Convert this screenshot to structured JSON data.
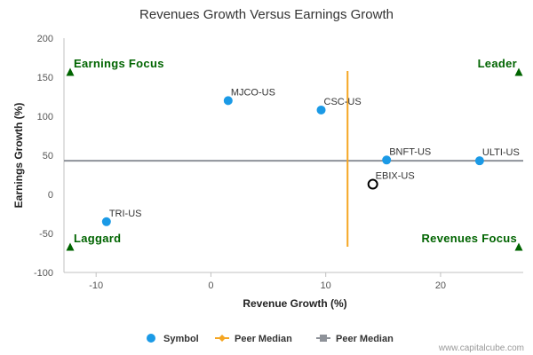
{
  "chart_data": {
    "type": "scatter",
    "title": "Revenues Growth Versus Earnings Growth",
    "xlabel": "Revenue Growth (%)",
    "ylabel": "Earnings Growth (%)",
    "xlim": [
      -12.8,
      27.2
    ],
    "ylim": [
      -100,
      200
    ],
    "x_ticks": [
      -10,
      0,
      10,
      20
    ],
    "y_ticks": [
      200,
      150,
      100,
      50,
      0,
      -50,
      -100
    ],
    "grid": false,
    "points": [
      {
        "label": "MJCO-US",
        "x": 1.5,
        "y": 120,
        "style": "filled",
        "color": "#1b9ae6"
      },
      {
        "label": "CSC-US",
        "x": 9.6,
        "y": 108,
        "style": "filled",
        "color": "#1b9ae6"
      },
      {
        "label": "BNFT-US",
        "x": 15.3,
        "y": 44,
        "style": "filled",
        "color": "#1b9ae6"
      },
      {
        "label": "ULTI-US",
        "x": 23.4,
        "y": 43,
        "style": "filled",
        "color": "#1b9ae6"
      },
      {
        "label": "EBIX-US",
        "x": 14.1,
        "y": 13,
        "style": "hollow",
        "color": "#000000"
      },
      {
        "label": "TRI-US",
        "x": -9.1,
        "y": -35,
        "style": "filled",
        "color": "#1b9ae6"
      }
    ],
    "peer_median_x": 11.9,
    "peer_median_x_range": [
      -67,
      158
    ],
    "peer_median_y": 43,
    "quadrants": {
      "top_left": "Earnings Focus",
      "top_right": "Leader",
      "bottom_left": "Laggard",
      "bottom_right": "Revenues Focus"
    },
    "legend": {
      "placement": "bottom-center",
      "items": [
        {
          "label": "Symbol",
          "marker": "circle",
          "color": "#1b9ae6"
        },
        {
          "label": "Peer Median",
          "marker": "diamond",
          "color": "#f5a623"
        },
        {
          "label": "Peer Median",
          "marker": "square",
          "color": "#8e9299"
        }
      ]
    },
    "credit": "www.capitalcube.com"
  },
  "colors": {
    "symbol": "#1b9ae6",
    "peer_median_vertical": "#f5a623",
    "peer_median_horizontal": "#8e9299",
    "quadrant_label": "#006400"
  }
}
